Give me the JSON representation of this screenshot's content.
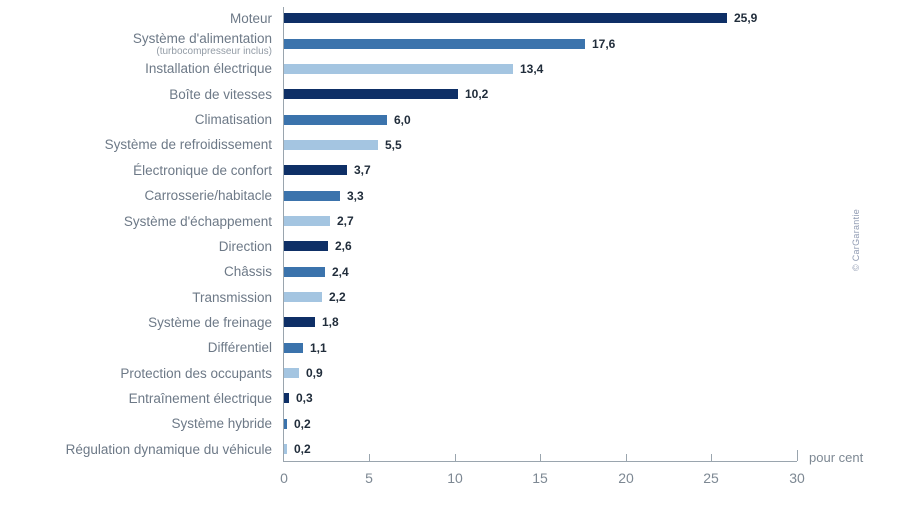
{
  "chart_data": {
    "type": "bar",
    "orientation": "horizontal",
    "title": "",
    "xlabel": "pour cent",
    "axis_unit_label": "pour cent",
    "xlim": [
      0,
      30
    ],
    "xticks": [
      0,
      5,
      10,
      15,
      20,
      25,
      30
    ],
    "grid": false,
    "legend": false,
    "bar_color_cycle": [
      "#0e2f66",
      "#3b73ac",
      "#a4c5e1"
    ],
    "watermark": "© CarGarantie",
    "rows": [
      {
        "label": "Moteur",
        "sublabel": "",
        "value": 25.9,
        "value_label": "25,9"
      },
      {
        "label": "Système d'alimentation",
        "sublabel": "(turbocompresseur inclus)",
        "value": 17.6,
        "value_label": "17,6"
      },
      {
        "label": "Installation électrique",
        "sublabel": "",
        "value": 13.4,
        "value_label": "13,4"
      },
      {
        "label": "Boîte de vitesses",
        "sublabel": "",
        "value": 10.2,
        "value_label": "10,2"
      },
      {
        "label": "Climatisation",
        "sublabel": "",
        "value": 6.0,
        "value_label": "6,0"
      },
      {
        "label": "Système de refroidissement",
        "sublabel": "",
        "value": 5.5,
        "value_label": "5,5"
      },
      {
        "label": "Électronique de confort",
        "sublabel": "",
        "value": 3.7,
        "value_label": "3,7"
      },
      {
        "label": "Carrosserie/habitacle",
        "sublabel": "",
        "value": 3.3,
        "value_label": "3,3"
      },
      {
        "label": "Système d'échappement",
        "sublabel": "",
        "value": 2.7,
        "value_label": "2,7"
      },
      {
        "label": "Direction",
        "sublabel": "",
        "value": 2.6,
        "value_label": "2,6"
      },
      {
        "label": "Châssis",
        "sublabel": "",
        "value": 2.4,
        "value_label": "2,4"
      },
      {
        "label": "Transmission",
        "sublabel": "",
        "value": 2.2,
        "value_label": "2,2"
      },
      {
        "label": "Système de freinage",
        "sublabel": "",
        "value": 1.8,
        "value_label": "1,8"
      },
      {
        "label": "Différentiel",
        "sublabel": "",
        "value": 1.1,
        "value_label": "1,1"
      },
      {
        "label": "Protection des occupants",
        "sublabel": "",
        "value": 0.9,
        "value_label": "0,9"
      },
      {
        "label": "Entraînement électrique",
        "sublabel": "",
        "value": 0.3,
        "value_label": "0,3"
      },
      {
        "label": "Système hybride",
        "sublabel": "",
        "value": 0.2,
        "value_label": "0,2"
      },
      {
        "label": "Régulation dynamique du véhicule",
        "sublabel": "",
        "value": 0.2,
        "value_label": "0,2"
      }
    ]
  }
}
